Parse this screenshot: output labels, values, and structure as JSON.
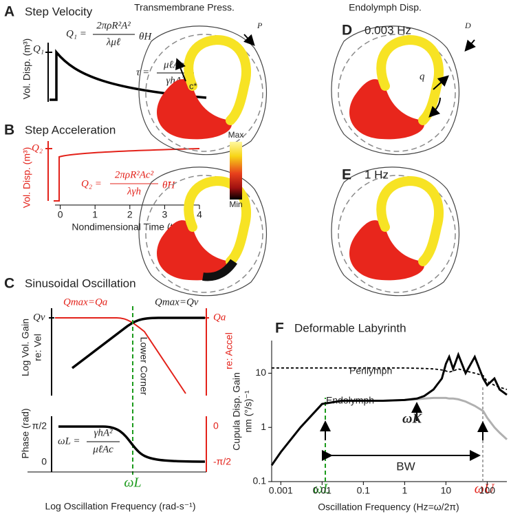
{
  "figure": {
    "panel_a": {
      "label": "A",
      "title": "Step Velocity",
      "ylabel": "Vol. Disp. (m³)",
      "tick": "Q₁",
      "eq_q": {
        "lhs": "Q₁ =",
        "num": "2πρR²A²",
        "den": "λμℓ",
        "rhs": "θ̇H"
      },
      "eq_tau": {
        "lhs": "τ =",
        "num": "μℓAc²",
        "den": "γhA²"
      }
    },
    "panel_b": {
      "label": "B",
      "title": "Step Acceleration",
      "ylabel": "Vol. Disp. (m³)",
      "tick": "Q₂",
      "eq_q": {
        "lhs": "Q₂ =",
        "num": "2πρR²Ac²",
        "den": "λγh",
        "rhs": "θ̈H"
      },
      "xlim": [
        -0.15,
        4
      ],
      "xticks": [
        0,
        1,
        2,
        3,
        4
      ],
      "xlabel": "Nondimensional Time (t/τ)"
    },
    "panel_c": {
      "label": "C",
      "title": "Sinusoidal Oscillation",
      "note_red": "Qmax=Qa",
      "note_black": "Qmax=Qv",
      "gain_left_tick": "Qv",
      "gain_right_tick": "Qa",
      "ylabel_gain": "Log Vol. Gain",
      "ylabel_gain_2": "re: Vel",
      "ylabel_accel": "re: Accel",
      "corner": "Lower Corner",
      "ylabel_phase": "Phase (rad)",
      "phase_left_ticks": [
        "π/2",
        "0"
      ],
      "phase_right_ticks": [
        "0",
        "-π/2"
      ],
      "eq_w": {
        "lhs": "ωL =",
        "num": "γhA²",
        "den": "μℓAc"
      },
      "x_mark": "ωL",
      "xlabel": "Log Oscillation Frequency (rad-s⁻¹)"
    },
    "panel_de": {
      "col_left": "Transmembrane Press.",
      "col_right": "Endolymph Disp.",
      "label_d": "D",
      "freq_d": "0.003 Hz",
      "label_e": "E",
      "freq_e": "1 Hz",
      "mark_p": "P",
      "mark_d": "D",
      "mark_q": "q",
      "mark_c": "c*",
      "scale_max": "Max",
      "scale_min": "Min"
    }
  },
  "chart_data": {
    "type": "line",
    "label": "F",
    "title": "Deformable Labyrinth",
    "xlabel": "Oscillation Frequency (Hz=ω/2π)",
    "ylabel": "Cupula Disp. Gain",
    "ylabel_2": "nm (°/s)⁻¹",
    "xscale": "log",
    "yscale": "log",
    "xlim": [
      0.0006,
      300
    ],
    "ylim": [
      0.1,
      40
    ],
    "xticks": [
      0.001,
      0.01,
      0.1,
      1,
      10,
      100
    ],
    "yticks": [
      0.1,
      1,
      10
    ],
    "x": [
      0.0006,
      0.001,
      0.003,
      0.01,
      0.03,
      0.1,
      0.3,
      1,
      2,
      3,
      5,
      8,
      10,
      12,
      15,
      20,
      30,
      50,
      80,
      100,
      150,
      200,
      300
    ],
    "series": [
      {
        "name": "Perilymph",
        "color": "#000000",
        "dash": true,
        "values": [
          12.5,
          12.5,
          12.5,
          12.5,
          12.5,
          12.5,
          12.5,
          12.5,
          12.3,
          12.2,
          12,
          11.5,
          11,
          10.5,
          11,
          12,
          11,
          10,
          9,
          7,
          6,
          5.5,
          5
        ]
      },
      {
        "color": "#b0b0b0",
        "dash": false,
        "values": [
          0.2,
          0.35,
          1,
          2.7,
          3.1,
          3.1,
          3.1,
          3.2,
          3.3,
          3.4,
          3.5,
          3.5,
          3.5,
          3.4,
          3.4,
          3.3,
          3,
          2.5,
          2,
          1.5,
          1,
          0.8,
          0.6
        ]
      },
      {
        "name": "Endolymph",
        "color": "#000000",
        "dash": false,
        "values": [
          0.2,
          0.35,
          1,
          2.7,
          3.1,
          3.1,
          3.1,
          3.2,
          3.4,
          3.8,
          5,
          8,
          15,
          20,
          12,
          22,
          10,
          20,
          8,
          6,
          8,
          5,
          4
        ]
      }
    ],
    "annotations": {
      "w_l": "ωL",
      "w_k": "ωK",
      "w_u": "ωU",
      "bw": "BW"
    }
  }
}
